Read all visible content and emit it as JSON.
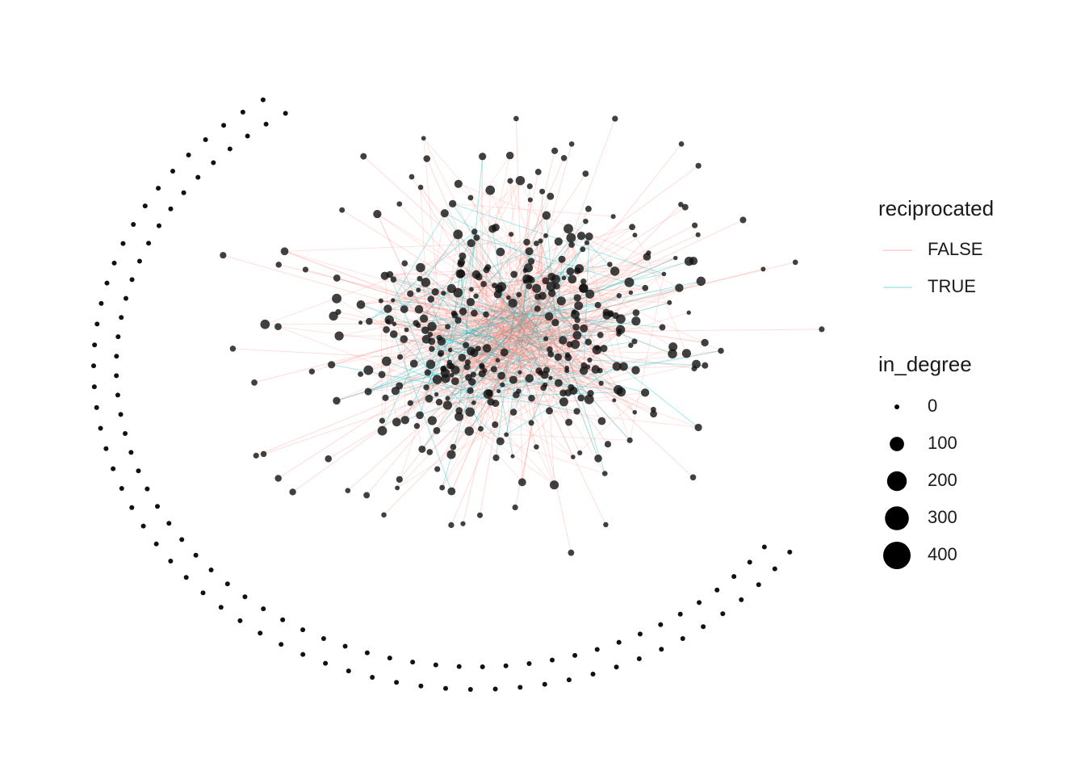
{
  "chart_data": {
    "type": "network",
    "legends": [
      {
        "title": "reciprocated",
        "entries": [
          {
            "label": "FALSE",
            "color": "#f8766d"
          },
          {
            "label": "TRUE",
            "color": "#00bfc4"
          }
        ]
      },
      {
        "title": "in_degree",
        "breaks": [
          0,
          100,
          200,
          300,
          400
        ]
      }
    ]
  }
}
